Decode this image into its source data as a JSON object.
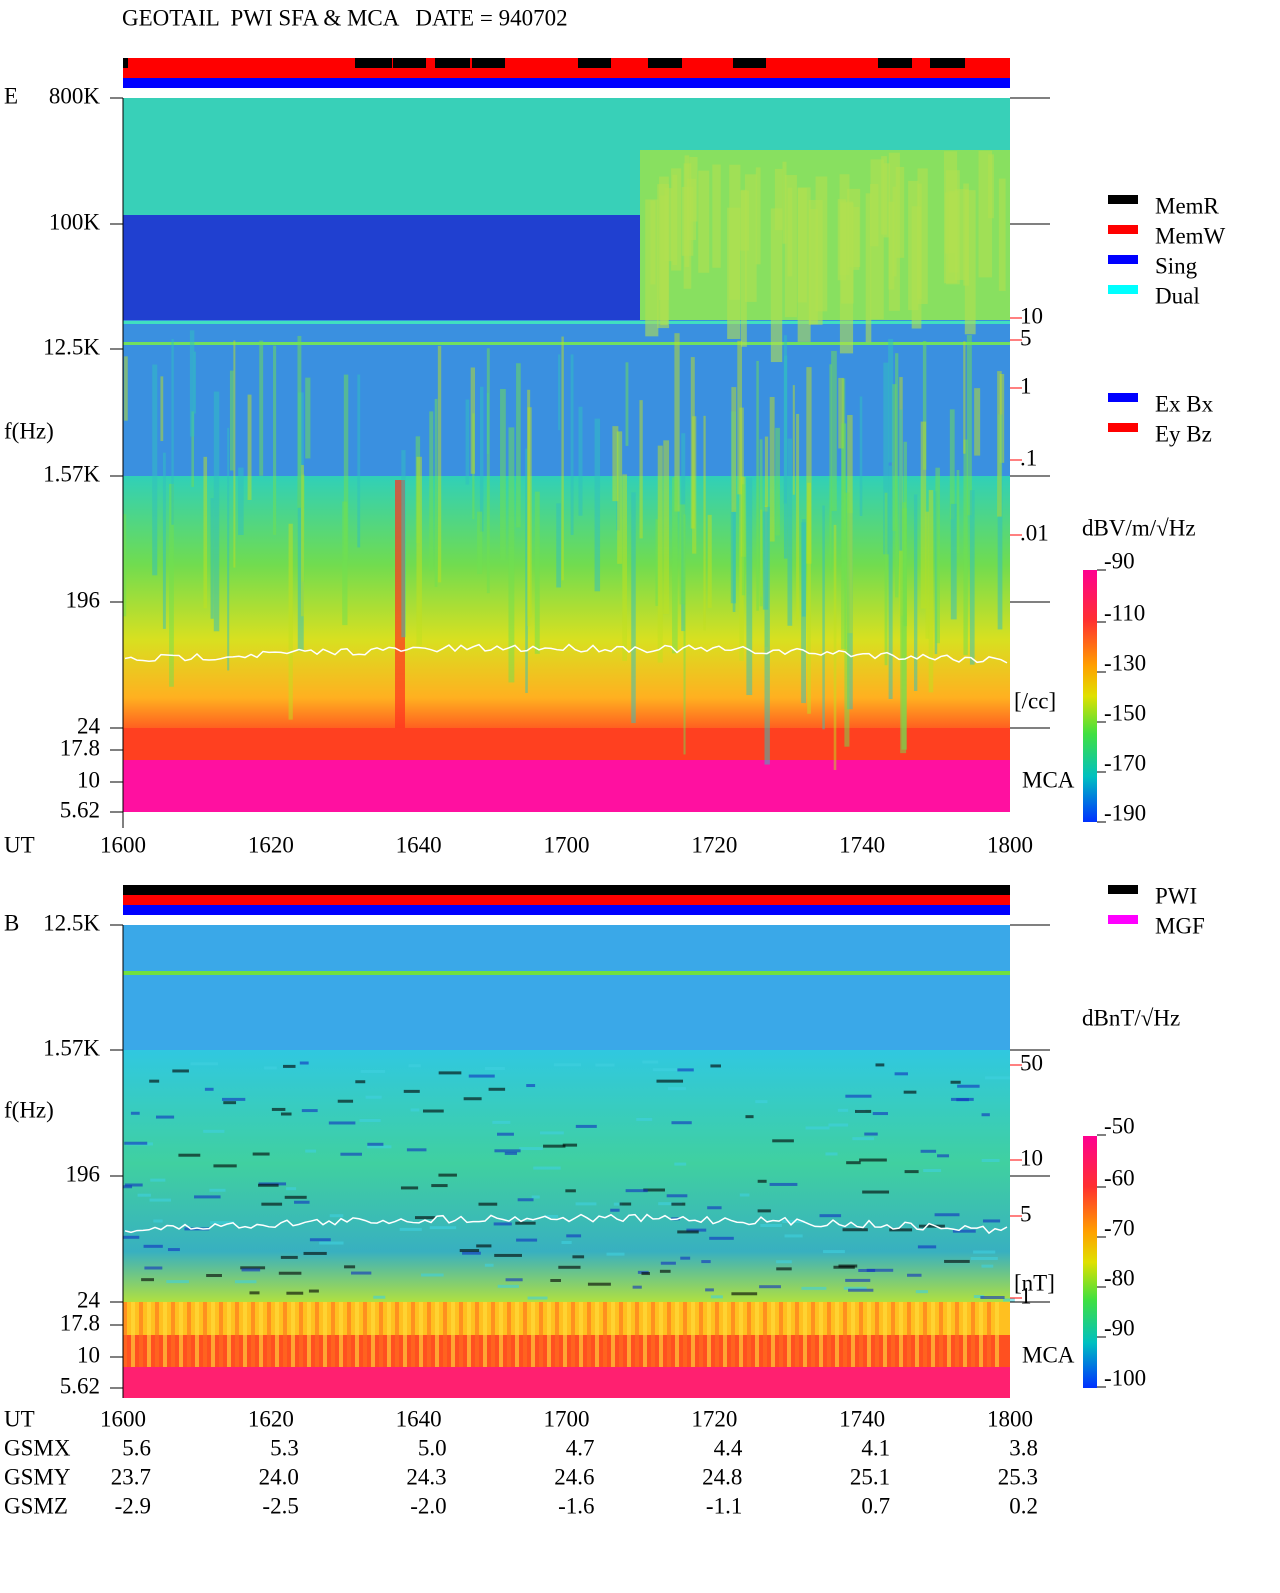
{
  "title": "GEOTAIL  PWI SFA & MCA   DATE = 940702",
  "panels": [
    {
      "label": "E",
      "ylabel": "f(Hz)",
      "xlabel": "UT",
      "yticks": [
        "800K",
        "100K",
        "12.5K",
        "1.57K",
        "196",
        "24",
        "17.8",
        "10",
        "5.62"
      ],
      "xticks": [
        "1600",
        "1620",
        "1640",
        "1700",
        "1720",
        "1740",
        "1800"
      ],
      "density_ticks": [
        "10",
        "5",
        "1",
        ".1",
        ".01"
      ],
      "density_unit": "[/cc]",
      "mca": "MCA",
      "colorbar_title": "dBV/m/√Hz",
      "colorbar_ticks": [
        "-90",
        "-110",
        "-130",
        "-150",
        "-170",
        "-190"
      ],
      "legend": [
        {
          "name": "MemR",
          "color": "#000000"
        },
        {
          "name": "MemW",
          "color": "#ff0000"
        },
        {
          "name": "Sing",
          "color": "#0000ff"
        },
        {
          "name": "Dual",
          "color": "#00ffff"
        },
        {
          "name": "Ex Bx",
          "color": "#0000ff"
        },
        {
          "name": "Ey Bz",
          "color": "#ff0000"
        }
      ]
    },
    {
      "label": "B",
      "ylabel": "f(Hz)",
      "xlabel": "UT",
      "yticks": [
        "12.5K",
        "1.57K",
        "196",
        "24",
        "17.8",
        "10",
        "5.62"
      ],
      "xticks": [
        "1600",
        "1620",
        "1640",
        "1700",
        "1720",
        "1740",
        "1800"
      ],
      "density_ticks": [
        "50",
        "10",
        "5",
        "1"
      ],
      "density_unit": "[nT]",
      "mca": "MCA",
      "colorbar_title": "dBnT/√Hz",
      "colorbar_ticks": [
        "-50",
        "-60",
        "-70",
        "-80",
        "-90",
        "-100"
      ],
      "legend": [
        {
          "name": "PWI",
          "color": "#000000"
        },
        {
          "name": "MGF",
          "color": "#ff00ff"
        }
      ]
    }
  ],
  "orbit": [
    {
      "name": "GSMX",
      "values": [
        "5.6",
        "5.3",
        "5.0",
        "4.7",
        "4.4",
        "4.1",
        "3.8"
      ]
    },
    {
      "name": "GSMY",
      "values": [
        "23.7",
        "24.0",
        "24.3",
        "24.6",
        "24.8",
        "25.1",
        "25.3"
      ]
    },
    {
      "name": "GSMZ",
      "values": [
        "-2.9",
        "-2.5",
        "-2.0",
        "-1.6",
        "-1.1",
        "0.7",
        "0.2"
      ]
    }
  ]
}
